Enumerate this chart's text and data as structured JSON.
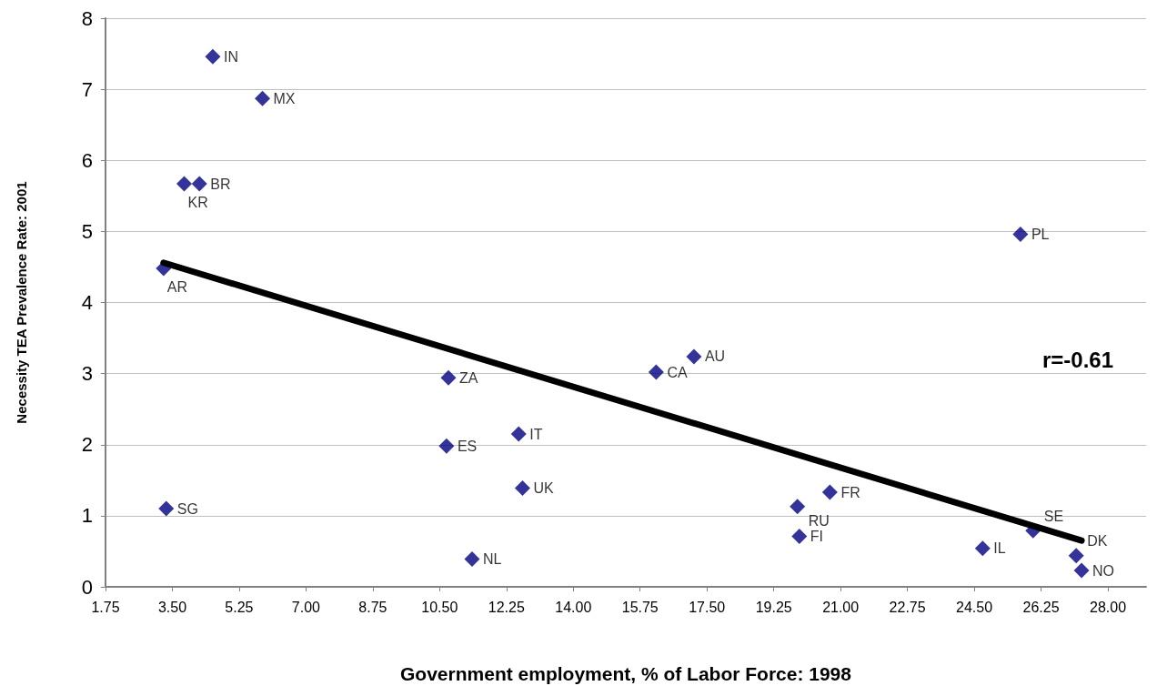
{
  "chart_data": {
    "type": "scatter",
    "xlabel": "Government employment, % of Labor Force: 1998",
    "ylabel": "Necessity TEA Prevalence Rate: 2001",
    "xlim": [
      1.75,
      29.0
    ],
    "xticks": [
      {
        "value": 1.75,
        "label": "1.75"
      },
      {
        "value": 3.5,
        "label": "3.50"
      },
      {
        "value": 5.25,
        "label": "5.25"
      },
      {
        "value": 7,
        "label": "7.00"
      },
      {
        "value": 8.75,
        "label": "8.75"
      },
      {
        "value": 10.5,
        "label": "10.50"
      },
      {
        "value": 12.25,
        "label": "12.25"
      },
      {
        "value": 14,
        "label": "14.00"
      },
      {
        "value": 15.75,
        "label": "15.75"
      },
      {
        "value": 17.5,
        "label": "17.50"
      },
      {
        "value": 19.25,
        "label": "19.25"
      },
      {
        "value": 21,
        "label": "21.00"
      },
      {
        "value": 22.75,
        "label": "22.75"
      },
      {
        "value": 24.5,
        "label": "24.50"
      },
      {
        "value": 26.25,
        "label": "26.25"
      },
      {
        "value": 28,
        "label": "28.00"
      }
    ],
    "ylim": [
      0,
      8
    ],
    "yticks": [
      0,
      1,
      2,
      3,
      4,
      5,
      6,
      7,
      8
    ],
    "grid": "y",
    "marker": "diamond",
    "series": [
      {
        "type": "scatter",
        "color": "#000080",
        "x": [
          4.56,
          5.86,
          3.81,
          4.21,
          3.27,
          3.34,
          10.73,
          10.68,
          12.57,
          12.67,
          11.35,
          16.17,
          17.16,
          25.71,
          20.72,
          19.87,
          19.92,
          24.72,
          26.04,
          27.17,
          27.31
        ],
        "values": [
          7.46,
          6.87,
          5.67,
          5.67,
          4.48,
          1.1,
          2.94,
          1.98,
          2.15,
          1.39,
          0.39,
          3.02,
          3.24,
          4.96,
          1.33,
          1.13,
          0.71,
          0.54,
          0.79,
          0.44,
          0.23
        ],
        "value_labels": [
          "IN",
          "MX",
          "KR",
          "BR",
          "AR",
          "SG",
          "ZA",
          "ES",
          "IT",
          "UK",
          "NL",
          "CA",
          "AU",
          "PL",
          "FR",
          "RU",
          "FI",
          "IL",
          "SE",
          "DK",
          "NO"
        ]
      },
      {
        "type": "line",
        "color": "#000000",
        "marker": "none",
        "x": [
          3.27,
          27.31
        ],
        "values": [
          4.56,
          0.65
        ]
      }
    ],
    "annotations": [
      "r=-0.61"
    ]
  }
}
